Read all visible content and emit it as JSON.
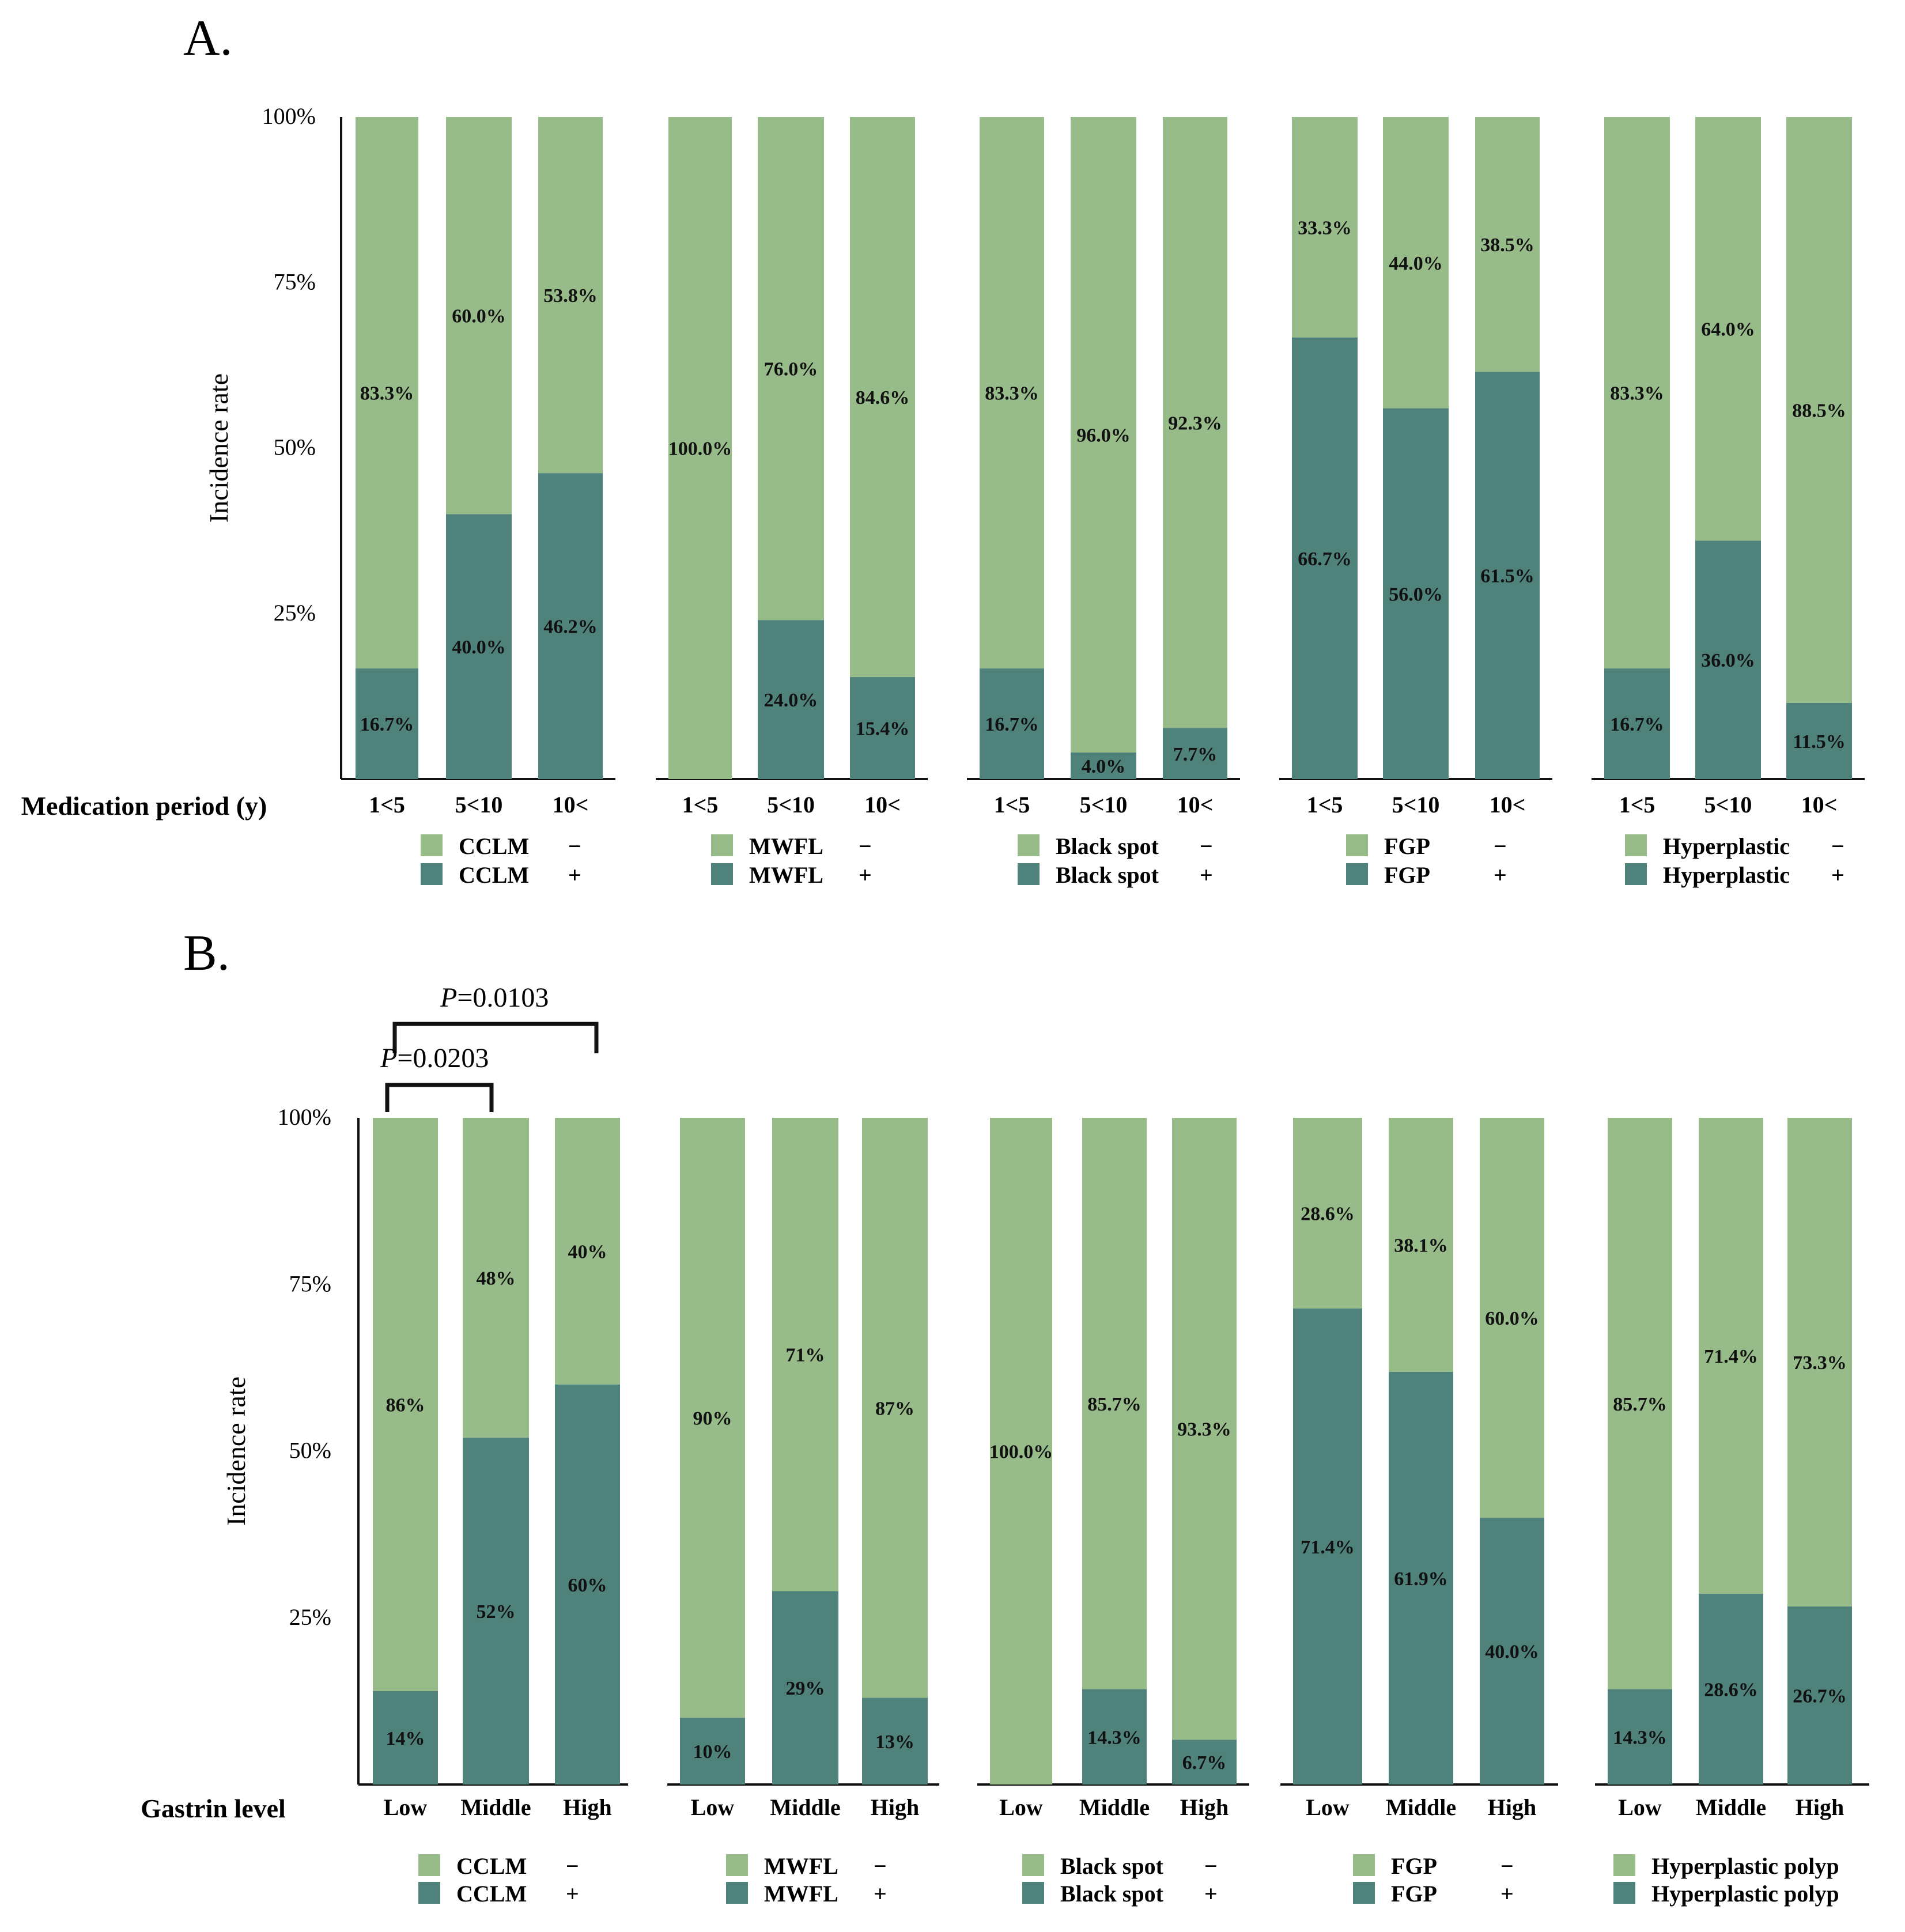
{
  "colors": {
    "negative": "#97bc8a",
    "positive": "#4e827a",
    "axis": "#111111"
  },
  "chart_data": [
    {
      "type": "bar",
      "stacked": true,
      "panel_label": "A.",
      "xtitle": "Medication period (y)",
      "ylabel": "Incidence rate",
      "yticks": [
        "100%",
        "75%",
        "50%",
        "25%"
      ],
      "ylim": [
        0,
        100
      ],
      "categories": [
        "1<5",
        "5<10",
        "10<"
      ],
      "groups": [
        {
          "legend": [
            {
              "name": "CCLM",
              "sign": "−"
            },
            {
              "name": "CCLM",
              "sign": "+"
            }
          ],
          "pos": [
            16.7,
            40.0,
            46.2
          ],
          "pos_labels": [
            "16.7%",
            "40.0%",
            "46.2%"
          ],
          "neg": [
            83.3,
            60.0,
            53.8
          ],
          "neg_labels": [
            "83.3%",
            "60.0%",
            "53.8%"
          ]
        },
        {
          "legend": [
            {
              "name": "MWFL",
              "sign": "−"
            },
            {
              "name": "MWFL",
              "sign": "+"
            }
          ],
          "pos": [
            0,
            24.0,
            15.4
          ],
          "pos_labels": [
            "",
            "24.0%",
            "15.4%"
          ],
          "neg": [
            100.0,
            76.0,
            84.6
          ],
          "neg_labels": [
            "100.0%",
            "76.0%",
            "84.6%"
          ]
        },
        {
          "legend": [
            {
              "name": "Black spot",
              "sign": "−"
            },
            {
              "name": "Black spot",
              "sign": "+"
            }
          ],
          "pos": [
            16.7,
            4.0,
            7.7
          ],
          "pos_labels": [
            "16.7%",
            "4.0%",
            "7.7%"
          ],
          "neg": [
            83.3,
            96.0,
            92.3
          ],
          "neg_labels": [
            "83.3%",
            "96.0%",
            "92.3%"
          ]
        },
        {
          "legend": [
            {
              "name": "FGP",
              "sign": "−"
            },
            {
              "name": "FGP",
              "sign": "+"
            }
          ],
          "pos": [
            66.7,
            56.0,
            61.5
          ],
          "pos_labels": [
            "66.7%",
            "56.0%",
            "61.5%"
          ],
          "neg": [
            33.3,
            44.0,
            38.5
          ],
          "neg_labels": [
            "33.3%",
            "44.0%",
            "38.5%"
          ]
        },
        {
          "legend": [
            {
              "name": "Hyperplastic",
              "sign": "−"
            },
            {
              "name": "Hyperplastic",
              "sign": "+"
            }
          ],
          "pos": [
            16.7,
            36.0,
            11.5
          ],
          "pos_labels": [
            "16.7%",
            "36.0%",
            "11.5%"
          ],
          "neg": [
            83.3,
            64.0,
            88.5
          ],
          "neg_labels": [
            "83.3%",
            "64.0%",
            "88.5%"
          ]
        }
      ]
    },
    {
      "type": "bar",
      "stacked": true,
      "panel_label": "B.",
      "xtitle": "Gastrin level",
      "ylabel": "Incidence rate",
      "yticks": [
        "100%",
        "75%",
        "50%",
        "25%"
      ],
      "ylim": [
        0,
        100
      ],
      "categories": [
        "Low",
        "Middle",
        "High"
      ],
      "annotations": [
        {
          "p_symbol": "P",
          "text": "=0.0103",
          "from": "Low",
          "to": "High"
        },
        {
          "p_symbol": "P",
          "text": "=0.0203",
          "from": "Low",
          "to": "Middle"
        }
      ],
      "groups": [
        {
          "legend": [
            {
              "name": "CCLM",
              "sign": "−"
            },
            {
              "name": "CCLM",
              "sign": "+"
            }
          ],
          "pos": [
            14,
            52,
            60
          ],
          "pos_labels": [
            "14%",
            "52%",
            "60%"
          ],
          "neg": [
            86,
            48,
            40
          ],
          "neg_labels": [
            "86%",
            "48%",
            "40%"
          ]
        },
        {
          "legend": [
            {
              "name": "MWFL",
              "sign": "−"
            },
            {
              "name": "MWFL",
              "sign": "+"
            }
          ],
          "pos": [
            10,
            29,
            13
          ],
          "pos_labels": [
            "10%",
            "29%",
            "13%"
          ],
          "neg": [
            90,
            71,
            87
          ],
          "neg_labels": [
            "90%",
            "71%",
            "87%"
          ]
        },
        {
          "legend": [
            {
              "name": "Black spot",
              "sign": "−"
            },
            {
              "name": "Black spot",
              "sign": "+"
            }
          ],
          "pos": [
            0,
            14.3,
            6.7
          ],
          "pos_labels": [
            "",
            "14.3%",
            "6.7%"
          ],
          "neg": [
            100.0,
            85.7,
            93.3
          ],
          "neg_labels": [
            "100.0%",
            "85.7%",
            "93.3%"
          ]
        },
        {
          "legend": [
            {
              "name": "FGP",
              "sign": "−"
            },
            {
              "name": "FGP",
              "sign": "+"
            }
          ],
          "pos": [
            71.4,
            61.9,
            40.0
          ],
          "pos_labels": [
            "71.4%",
            "61.9%",
            "40.0%"
          ],
          "neg": [
            28.6,
            38.1,
            60.0
          ],
          "neg_labels": [
            "28.6%",
            "38.1%",
            "60.0%"
          ]
        },
        {
          "legend": [
            {
              "name": "Hyperplastic  polyp",
              "sign": "−"
            },
            {
              "name": "Hyperplastic  polyp",
              "sign": "+"
            }
          ],
          "pos": [
            14.3,
            28.6,
            26.7
          ],
          "pos_labels": [
            "14.3%",
            "28.6%",
            "26.7%"
          ],
          "neg": [
            85.7,
            71.4,
            73.3
          ],
          "neg_labels": [
            "85.7%",
            "71.4%",
            "73.3%"
          ]
        }
      ]
    }
  ]
}
